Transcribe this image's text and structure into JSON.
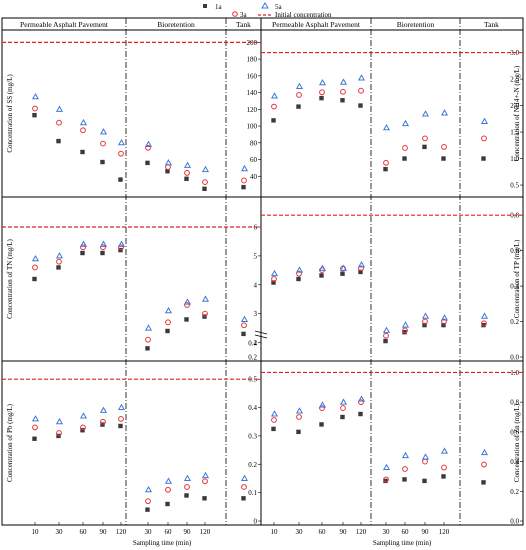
{
  "legend": [
    {
      "key": "1a",
      "label": "1a",
      "marker": "square",
      "color": "#3a3a3a"
    },
    {
      "key": "3a",
      "label": "3a",
      "marker": "circle",
      "color": "#e8333c"
    },
    {
      "key": "5a",
      "label": "5a",
      "marker": "triangle",
      "color": "#3f78d6"
    },
    {
      "key": "init",
      "label": "Initial concentration",
      "marker": "dashed",
      "color": "#e02020"
    }
  ],
  "x_axis_label": "Sampling time (min)",
  "x_tick_labels": [
    "10",
    "30",
    "60",
    "90",
    "120",
    "30",
    "60",
    "90",
    "120"
  ],
  "sections": [
    "Permeable Asphalt Pavement",
    "Bioretention",
    "Tank"
  ],
  "chart_data": [
    {
      "type": "scatter",
      "id": "ss",
      "ylabel": "Concentration of SS (mg/L)",
      "ylim": [
        20,
        210
      ],
      "yticks": [
        40,
        60,
        80,
        100,
        120,
        140,
        160,
        180,
        200
      ],
      "initial": 200,
      "series": [
        {
          "name": "1a",
          "pap": [
            113,
            82,
            69,
            57,
            36
          ],
          "bio": [
            56,
            46,
            37,
            25
          ],
          "tank": [
            27
          ]
        },
        {
          "name": "3a",
          "pap": [
            121,
            104,
            95,
            79,
            67
          ],
          "bio": [
            74,
            51,
            44,
            33
          ],
          "tank": [
            35
          ]
        },
        {
          "name": "5a",
          "pap": [
            135,
            120,
            104,
            93,
            80
          ],
          "bio": [
            78,
            56,
            53,
            48
          ],
          "tank": [
            49
          ]
        }
      ]
    },
    {
      "type": "scatter",
      "id": "nh",
      "ylabel": "Concentration of NH4+-N (mg/L)",
      "ylim": [
        0.35,
        3.35
      ],
      "yticks": [
        0.5,
        1.0,
        1.5,
        2.0,
        2.5,
        3.0
      ],
      "initial": 3.0,
      "series": [
        {
          "name": "1a",
          "pap": [
            1.72,
            1.98,
            2.14,
            2.1,
            2.0
          ],
          "bio": [
            0.8,
            1.0,
            1.22,
            1.0
          ],
          "tank": [
            1.0
          ]
        },
        {
          "name": "3a",
          "pap": [
            1.98,
            2.2,
            2.25,
            2.26,
            2.28
          ],
          "bio": [
            0.92,
            1.2,
            1.38,
            1.22
          ],
          "tank": [
            1.38
          ]
        },
        {
          "name": "5a",
          "pap": [
            2.18,
            2.36,
            2.43,
            2.44,
            2.52
          ],
          "bio": [
            1.58,
            1.66,
            1.84,
            1.86
          ],
          "tank": [
            1.7
          ]
        }
      ]
    },
    {
      "type": "scatter",
      "id": "tn",
      "ylabel": "Concentration of TN (mg/L)",
      "ylim": [
        1.5,
        6.9
      ],
      "yticks": [
        2,
        3,
        4,
        5,
        6
      ],
      "y_break_ticks": [
        0.2,
        0.4
      ],
      "initial": 6.0,
      "series": [
        {
          "name": "1a",
          "pap": [
            4.2,
            4.6,
            5.1,
            5.1,
            5.2
          ],
          "bio": [
            1.8,
            2.4,
            2.8,
            2.9
          ],
          "tank": [
            2.3
          ]
        },
        {
          "name": "3a",
          "pap": [
            4.6,
            4.8,
            5.3,
            5.3,
            5.3
          ],
          "bio": [
            2.1,
            2.7,
            3.3,
            3.0
          ],
          "tank": [
            2.6
          ]
        },
        {
          "name": "5a",
          "pap": [
            4.9,
            5.0,
            5.4,
            5.4,
            5.4
          ],
          "bio": [
            2.5,
            3.1,
            3.4,
            3.5
          ],
          "tank": [
            2.8
          ]
        }
      ]
    },
    {
      "type": "scatter",
      "id": "tp",
      "ylabel": "Concentration of TP (mg/L)",
      "ylim": [
        0.0,
        0.88
      ],
      "yticks": [
        0.0,
        0.2,
        0.4,
        0.6,
        0.8
      ],
      "initial": 0.8,
      "series": [
        {
          "name": "1a",
          "pap": [
            0.42,
            0.44,
            0.46,
            0.47,
            0.48
          ],
          "bio": [
            0.09,
            0.14,
            0.18,
            0.18
          ],
          "tank": [
            0.18
          ]
        },
        {
          "name": "3a",
          "pap": [
            0.44,
            0.47,
            0.49,
            0.5,
            0.5
          ],
          "bio": [
            0.12,
            0.15,
            0.2,
            0.2
          ],
          "tank": [
            0.19
          ]
        },
        {
          "name": "5a",
          "pap": [
            0.47,
            0.49,
            0.5,
            0.5,
            0.52
          ],
          "bio": [
            0.15,
            0.18,
            0.23,
            0.22
          ],
          "tank": [
            0.23
          ]
        }
      ]
    },
    {
      "type": "scatter",
      "id": "pb",
      "ylabel": "Concentration of Pb (mg/L)",
      "ylim": [
        0.0,
        0.55
      ],
      "yticks": [
        0.0,
        0.1,
        0.2,
        0.3,
        0.4,
        0.5
      ],
      "initial": 0.5,
      "series": [
        {
          "name": "1a",
          "pap": [
            0.29,
            0.3,
            0.32,
            0.34,
            0.335
          ],
          "bio": [
            0.04,
            0.06,
            0.09,
            0.08
          ],
          "tank": [
            0.08
          ]
        },
        {
          "name": "3a",
          "pap": [
            0.33,
            0.31,
            0.33,
            0.35,
            0.36
          ],
          "bio": [
            0.07,
            0.11,
            0.12,
            0.14
          ],
          "tank": [
            0.12
          ]
        },
        {
          "name": "5a",
          "pap": [
            0.36,
            0.35,
            0.37,
            0.39,
            0.4
          ],
          "bio": [
            0.11,
            0.14,
            0.15,
            0.16
          ],
          "tank": [
            0.15
          ]
        }
      ]
    },
    {
      "type": "scatter",
      "id": "zn",
      "ylabel": "Concentration of Zn (mg/L)",
      "ylim": [
        0.0,
        1.05
      ],
      "yticks": [
        0.0,
        0.2,
        0.4,
        0.6,
        0.8,
        1.0
      ],
      "initial": 1.0,
      "series": [
        {
          "name": "1a",
          "pap": [
            0.62,
            0.6,
            0.65,
            0.7,
            0.72
          ],
          "bio": [
            0.27,
            0.28,
            0.27,
            0.3
          ],
          "tank": [
            0.26
          ]
        },
        {
          "name": "3a",
          "pap": [
            0.68,
            0.7,
            0.76,
            0.76,
            0.8
          ],
          "bio": [
            0.28,
            0.35,
            0.4,
            0.36
          ],
          "tank": [
            0.38
          ]
        },
        {
          "name": "5a",
          "pap": [
            0.72,
            0.74,
            0.78,
            0.8,
            0.82
          ],
          "bio": [
            0.36,
            0.44,
            0.43,
            0.47
          ],
          "tank": [
            0.46
          ]
        }
      ]
    }
  ]
}
